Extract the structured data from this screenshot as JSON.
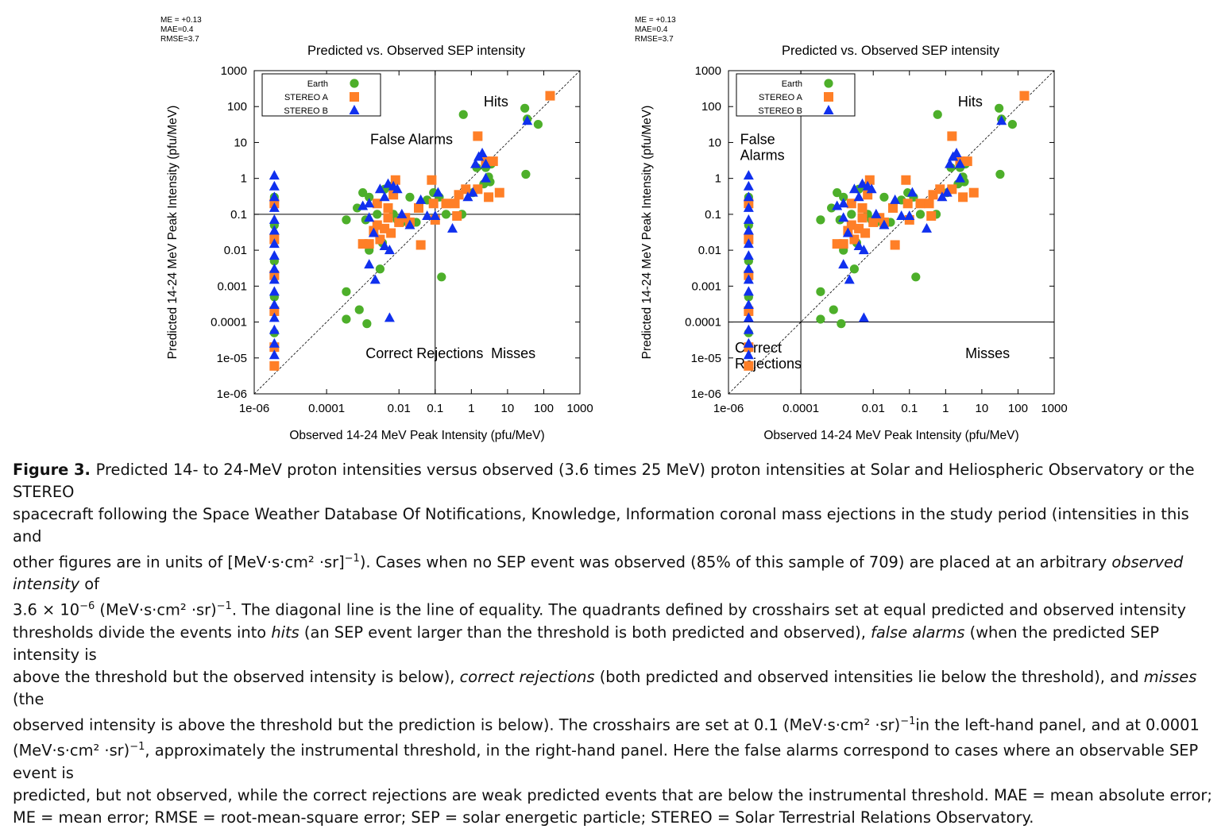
{
  "colors": {
    "earth": "#4daf2a",
    "stereo_a": "#ff7f27",
    "stereo_b": "#1030ee",
    "axis": "#000000"
  },
  "chart_data": [
    {
      "type": "scatter",
      "stats": [
        "ME = +0.13",
        "MAE=0.4",
        "RMSE=3.7"
      ],
      "title": "Predicted vs. Observed SEP intensity",
      "xlabel": "Observed 14-24 MeV Peak Intensity (pfu/MeV)",
      "ylabel": "Predicted 14-24 MeV Peak Intensity (pfu/MeV)",
      "x_scale": "log",
      "y_scale": "log",
      "xlim": [
        1e-06,
        1000
      ],
      "ylim": [
        1e-06,
        1000
      ],
      "xticks": [
        {
          "v": 1e-06,
          "label": "1e-06"
        },
        {
          "v": 0.0001,
          "label": "0.0001"
        },
        {
          "v": 0.01,
          "label": "0.01"
        },
        {
          "v": 0.1,
          "label": "0.1"
        },
        {
          "v": 1,
          "label": "1"
        },
        {
          "v": 10,
          "label": "10"
        },
        {
          "v": 100,
          "label": "100"
        },
        {
          "v": 1000,
          "label": "1000"
        }
      ],
      "yticks": [
        {
          "v": 1000,
          "label": "1000"
        },
        {
          "v": 100,
          "label": "100"
        },
        {
          "v": 10,
          "label": "10"
        },
        {
          "v": 1,
          "label": "1"
        },
        {
          "v": 0.1,
          "label": "0.1"
        },
        {
          "v": 0.01,
          "label": "0.01"
        },
        {
          "v": 0.001,
          "label": "0.001"
        },
        {
          "v": 0.0001,
          "label": "0.0001"
        },
        {
          "v": 1e-05,
          "label": "1e-05"
        },
        {
          "v": 1e-06,
          "label": "1e-06"
        }
      ],
      "threshold": 0.1,
      "legend_position": "top-left",
      "quadrant_labels": [
        {
          "text": [
            "Hits"
          ],
          "x": 2.2,
          "y": 100
        },
        {
          "text": [
            "False Alarms"
          ],
          "x": 0.0016,
          "y": 9
        },
        {
          "text": [
            "Correct Rejections"
          ],
          "x": 0.0012,
          "y": 1e-05
        },
        {
          "text": [
            "Misses"
          ],
          "x": 3.5,
          "y": 1e-05
        }
      ],
      "series_ref": "panel_series"
    },
    {
      "type": "scatter",
      "stats": [
        "ME = +0.13",
        "MAE=0.4",
        "RMSE=3.7"
      ],
      "title": "Predicted vs. Observed SEP intensity",
      "xlabel": "Observed 14-24 MeV Peak Intensity (pfu/MeV)",
      "ylabel": "Predicted 14-24 MeV Peak Intensity (pfu/MeV)",
      "x_scale": "log",
      "y_scale": "log",
      "xlim": [
        1e-06,
        1000
      ],
      "ylim": [
        1e-06,
        1000
      ],
      "xticks": [
        {
          "v": 1e-06,
          "label": "1e-06"
        },
        {
          "v": 0.0001,
          "label": "0.0001"
        },
        {
          "v": 0.01,
          "label": "0.01"
        },
        {
          "v": 0.1,
          "label": "0.1"
        },
        {
          "v": 1,
          "label": "1"
        },
        {
          "v": 10,
          "label": "10"
        },
        {
          "v": 100,
          "label": "100"
        },
        {
          "v": 1000,
          "label": "1000"
        }
      ],
      "yticks": [
        {
          "v": 1000,
          "label": "1000"
        },
        {
          "v": 100,
          "label": "100"
        },
        {
          "v": 10,
          "label": "10"
        },
        {
          "v": 1,
          "label": "1"
        },
        {
          "v": 0.1,
          "label": "0.1"
        },
        {
          "v": 0.01,
          "label": "0.01"
        },
        {
          "v": 0.001,
          "label": "0.001"
        },
        {
          "v": 0.0001,
          "label": "0.0001"
        },
        {
          "v": 1e-05,
          "label": "1e-05"
        },
        {
          "v": 1e-06,
          "label": "1e-06"
        }
      ],
      "threshold": 0.0001,
      "legend_position": "top-left",
      "quadrant_labels": [
        {
          "text": [
            "Hits"
          ],
          "x": 2.2,
          "y": 100
        },
        {
          "text": [
            "False",
            "Alarms"
          ],
          "x": 2.1e-06,
          "y": 9
        },
        {
          "text": [
            "Correct",
            "Rejections"
          ],
          "x": 1.5e-06,
          "y": 1.4e-05
        },
        {
          "text": [
            "Misses"
          ],
          "x": 3.5,
          "y": 1e-05
        }
      ],
      "series_ref": "panel_series"
    }
  ],
  "panel_series": [
    {
      "name": "Earth",
      "marker": "circle",
      "points": [
        [
          3.6e-06,
          0.3
        ],
        [
          3.6e-06,
          0.05
        ],
        [
          3.6e-06,
          0.005
        ],
        [
          3.6e-06,
          0.0005
        ],
        [
          3.6e-06,
          5e-05
        ],
        [
          0.00035,
          0.07
        ],
        [
          0.0007,
          0.15
        ],
        [
          0.001,
          0.4
        ],
        [
          0.0012,
          0.07
        ],
        [
          0.0015,
          0.3
        ],
        [
          0.0025,
          0.1
        ],
        [
          0.004,
          0.5
        ],
        [
          0.0055,
          0.6
        ],
        [
          0.007,
          0.1
        ],
        [
          0.009,
          0.07
        ],
        [
          0.012,
          0.06
        ],
        [
          0.02,
          0.3
        ],
        [
          0.03,
          0.06
        ],
        [
          0.06,
          0.25
        ],
        [
          0.09,
          0.4
        ],
        [
          0.13,
          0.3
        ],
        [
          0.2,
          0.1
        ],
        [
          0.55,
          0.1
        ],
        [
          0.00035,
          0.0007
        ],
        [
          0.0015,
          0.01
        ],
        [
          0.003,
          0.003
        ],
        [
          0.0035,
          0.016
        ],
        [
          0.0008,
          0.00022
        ],
        [
          0.00035,
          0.00012
        ],
        [
          0.0013,
          9e-05
        ],
        [
          0.15,
          0.0018
        ],
        [
          0.6,
          60
        ],
        [
          1.1,
          0.4
        ],
        [
          1.4,
          2
        ],
        [
          2.2,
          0.7
        ],
        [
          2.5,
          2
        ],
        [
          3,
          1.1
        ],
        [
          3.3,
          0.8
        ],
        [
          3.5,
          2.5
        ],
        [
          30,
          90
        ],
        [
          32,
          1.3
        ],
        [
          35,
          45
        ],
        [
          70,
          32
        ]
      ]
    },
    {
      "name": "STEREO A",
      "marker": "square",
      "points": [
        [
          3.6e-06,
          0.2
        ],
        [
          3.6e-06,
          0.02
        ],
        [
          3.6e-06,
          0.002
        ],
        [
          3.6e-06,
          0.0002
        ],
        [
          3.6e-06,
          2e-05
        ],
        [
          3.6e-06,
          6e-06
        ],
        [
          0.001,
          0.015
        ],
        [
          0.0015,
          0.015
        ],
        [
          0.002,
          0.035
        ],
        [
          0.0025,
          0.05
        ],
        [
          0.003,
          0.02
        ],
        [
          0.004,
          0.04
        ],
        [
          0.005,
          0.08
        ],
        [
          0.005,
          0.15
        ],
        [
          0.006,
          0.03
        ],
        [
          0.008,
          0.9
        ],
        [
          0.007,
          0.35
        ],
        [
          0.0025,
          0.2
        ],
        [
          0.01,
          0.06
        ],
        [
          0.015,
          0.08
        ],
        [
          0.02,
          0.06
        ],
        [
          0.035,
          0.15
        ],
        [
          0.04,
          0.014
        ],
        [
          0.08,
          0.9
        ],
        [
          0.09,
          0.2
        ],
        [
          0.1,
          0.07
        ],
        [
          0.2,
          0.2
        ],
        [
          0.35,
          0.2
        ],
        [
          0.4,
          0.09
        ],
        [
          0.45,
          0.35
        ],
        [
          0.7,
          0.5
        ],
        [
          1.5,
          15
        ],
        [
          2.5,
          3
        ],
        [
          4,
          3
        ],
        [
          6,
          0.4
        ],
        [
          3,
          0.3
        ],
        [
          1.5,
          0.5
        ],
        [
          150,
          200
        ]
      ]
    },
    {
      "name": "STEREO B",
      "marker": "triangle",
      "points": [
        [
          3.6e-06,
          1.2
        ],
        [
          3.6e-06,
          0.6
        ],
        [
          3.6e-06,
          0.3
        ],
        [
          3.6e-06,
          0.15
        ],
        [
          3.6e-06,
          0.07
        ],
        [
          3.6e-06,
          0.035
        ],
        [
          3.6e-06,
          0.015
        ],
        [
          3.6e-06,
          0.007
        ],
        [
          3.6e-06,
          0.003
        ],
        [
          3.6e-06,
          0.0015
        ],
        [
          3.6e-06,
          0.0007
        ],
        [
          3.6e-06,
          0.0003
        ],
        [
          3.6e-06,
          0.00013
        ],
        [
          3.6e-06,
          6e-05
        ],
        [
          3.6e-06,
          2.5e-05
        ],
        [
          3.6e-06,
          1.2e-05
        ],
        [
          0.001,
          0.17
        ],
        [
          0.0015,
          0.2
        ],
        [
          0.0015,
          0.08
        ],
        [
          0.002,
          0.03
        ],
        [
          0.003,
          0.5
        ],
        [
          0.004,
          0.3
        ],
        [
          0.005,
          0.7
        ],
        [
          0.007,
          0.6
        ],
        [
          0.009,
          0.5
        ],
        [
          0.004,
          0.013
        ],
        [
          0.0055,
          0.01
        ],
        [
          0.0015,
          0.004
        ],
        [
          0.0022,
          0.0015
        ],
        [
          0.0055,
          0.00013
        ],
        [
          0.012,
          0.1
        ],
        [
          0.02,
          0.05
        ],
        [
          0.04,
          0.25
        ],
        [
          0.06,
          0.09
        ],
        [
          0.1,
          0.09
        ],
        [
          0.12,
          0.4
        ],
        [
          0.3,
          0.04
        ],
        [
          0.8,
          0.3
        ],
        [
          1.1,
          0.4
        ],
        [
          1.3,
          2.5
        ],
        [
          1.6,
          4
        ],
        [
          2,
          5
        ],
        [
          2.5,
          2.5
        ],
        [
          2.5,
          1
        ],
        [
          35,
          40
        ]
      ]
    }
  ],
  "caption": {
    "label": "Figure 3.",
    "lines": [
      [
        "Predicted 14- to 24-MeV proton intensities versus observed (3.6 times 25 MeV) proton intensities at Solar and Heliospheric Observatory or the STEREO"
      ],
      [
        "spacecraft following the Space Weather Database Of Notifications, Knowledge, Information coronal mass ejections in the study period (intensities in this and"
      ],
      [
        "other figures are in units of [MeV·s·cm² ·sr]",
        "^−1",
        "). Cases when no SEP event was observed (85% of this sample of 709) are placed at an arbitrary ",
        "*observed intensity",
        " of"
      ],
      [
        "3.6 × 10",
        "^−6",
        " (MeV·s·cm² ·sr)",
        "^−1",
        ". The diagonal line is the line of equality. The quadrants defined by crosshairs set at equal predicted and observed intensity"
      ],
      [
        "thresholds divide the events into ",
        "*hits",
        " (an SEP event larger than the threshold is both predicted and observed), ",
        "*false alarms",
        " (when the predicted SEP intensity is"
      ],
      [
        "above the threshold but the observed intensity is below), ",
        "*correct rejections",
        " (both predicted and observed intensities lie below the threshold), and ",
        "*misses",
        " (the"
      ],
      [
        "observed intensity is above the threshold but the prediction is below). The crosshairs are set at 0.1  (MeV·s·cm² ·sr)",
        "^−1",
        "in the left-hand panel, and at 0.0001"
      ],
      [
        "(MeV·s·cm² ·sr)",
        "^−1",
        ", approximately the instrumental threshold, in the right-hand panel. Here the false alarms correspond to cases where an observable SEP event is"
      ],
      [
        "predicted, but not observed, while the correct rejections are weak predicted events that are below the instrumental threshold. MAE = mean absolute error;"
      ],
      [
        "ME = mean error; RMSE = root-mean-square error; SEP = solar energetic particle; STEREO = Solar Terrestrial Relations Observatory."
      ]
    ]
  }
}
